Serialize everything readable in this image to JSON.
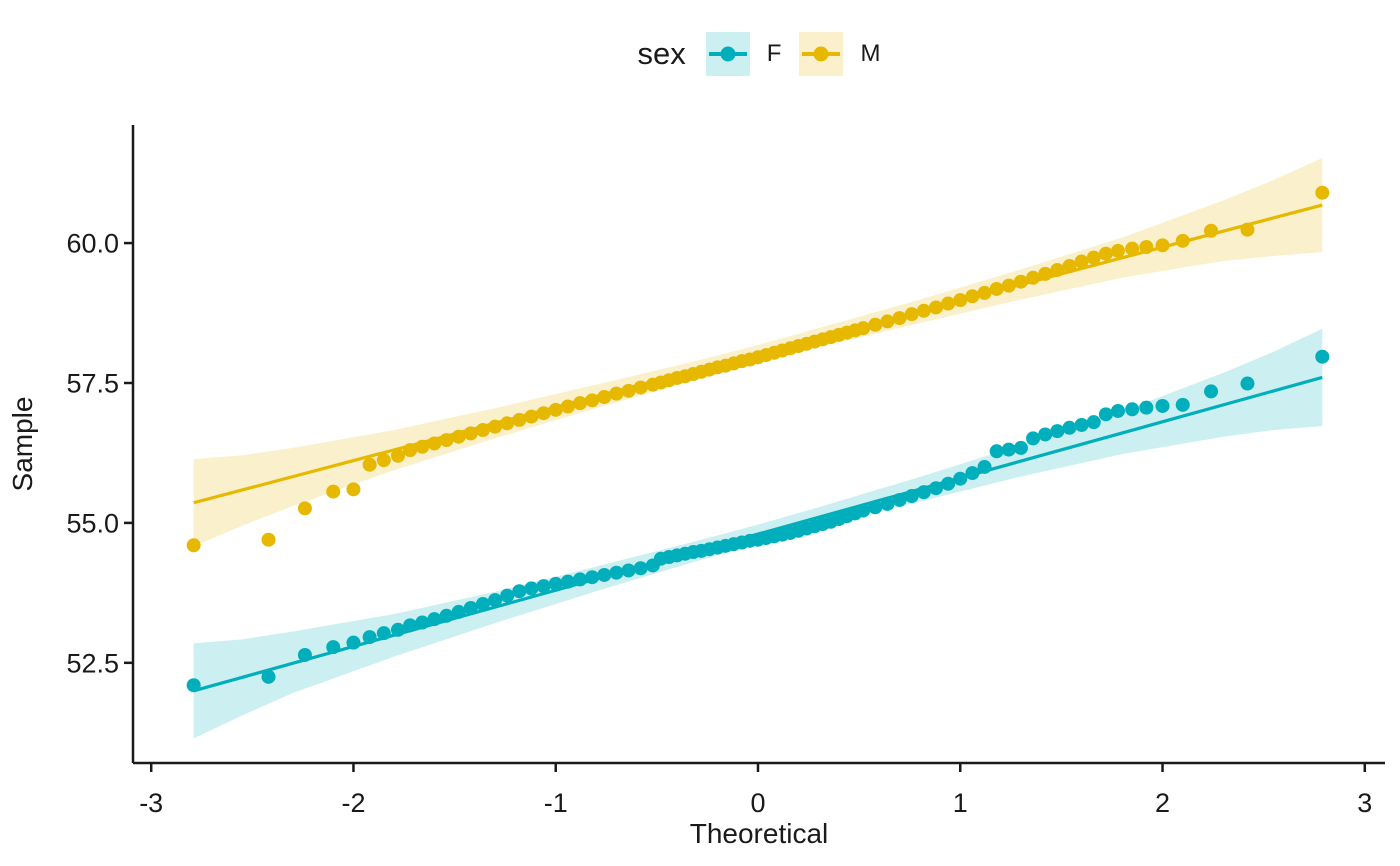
{
  "legend": {
    "title": "sex",
    "items": [
      {
        "label": "F",
        "color": "#00AFBB",
        "band_fill": "#CCEFF1"
      },
      {
        "label": "M",
        "color": "#E7B800",
        "band_fill": "#FAF1CC"
      }
    ]
  },
  "chart_data": {
    "type": "scatter",
    "subtype": "qq-plot-with-confidence-band",
    "title": "",
    "xlabel": "Theoretical",
    "ylabel": "Sample",
    "xlim": [
      -3.09,
      3.1
    ],
    "ylim": [
      50.71,
      62.11
    ],
    "x_ticks": [
      -3,
      -2,
      -1,
      0,
      1,
      2,
      3
    ],
    "x_tick_labels": [
      "-3",
      "-2",
      "-1",
      "0",
      "1",
      "2",
      "3"
    ],
    "y_ticks": [
      52.5,
      55.0,
      57.5,
      60.0
    ],
    "y_tick_labels": [
      "52.5",
      "55.0",
      "57.5",
      "60.0"
    ],
    "grid": "off",
    "legend_position": "top-center",
    "series": [
      {
        "name": "F",
        "color": "#00AFBB",
        "band_fill": "#CCEFF1",
        "line": {
          "x": [
            -2.79,
            2.79
          ],
          "y": [
            52.0,
            57.6
          ]
        },
        "band": {
          "x": [
            -2.79,
            -2.55,
            -2.3,
            -1.8,
            -1.3,
            -0.8,
            -0.3,
            0.0,
            0.3,
            0.8,
            1.3,
            1.8,
            2.3,
            2.55,
            2.79
          ],
          "lo": [
            51.15,
            51.56,
            51.96,
            52.61,
            53.21,
            53.78,
            54.32,
            54.63,
            54.92,
            55.38,
            55.83,
            56.23,
            56.54,
            56.66,
            56.73
          ],
          "hi": [
            52.85,
            52.92,
            53.06,
            53.37,
            53.77,
            54.22,
            54.68,
            54.97,
            55.28,
            55.82,
            56.39,
            56.99,
            57.68,
            58.06,
            58.47
          ]
        },
        "points": {
          "x": [
            -2.79,
            -2.42,
            -2.24,
            -2.1,
            -2.0,
            -1.92,
            -1.85,
            -1.78,
            -1.72,
            -1.66,
            -1.6,
            -1.54,
            -1.48,
            -1.42,
            -1.36,
            -1.3,
            -1.24,
            -1.18,
            -1.12,
            -1.06,
            -1.0,
            -0.94,
            -0.88,
            -0.82,
            -0.76,
            -0.7,
            -0.64,
            -0.58,
            -0.52,
            -0.48,
            -0.44,
            -0.4,
            -0.36,
            -0.32,
            -0.28,
            -0.24,
            -0.2,
            -0.16,
            -0.12,
            -0.08,
            -0.04,
            0.0,
            0.04,
            0.08,
            0.12,
            0.16,
            0.2,
            0.24,
            0.28,
            0.32,
            0.36,
            0.4,
            0.44,
            0.48,
            0.52,
            0.58,
            0.64,
            0.7,
            0.76,
            0.82,
            0.88,
            0.94,
            1.0,
            1.06,
            1.12,
            1.18,
            1.24,
            1.3,
            1.36,
            1.42,
            1.48,
            1.54,
            1.6,
            1.66,
            1.72,
            1.78,
            1.85,
            1.92,
            2.0,
            2.1,
            2.24,
            2.42,
            2.79
          ],
          "y": [
            52.1,
            52.25,
            52.64,
            52.78,
            52.86,
            52.96,
            53.03,
            53.09,
            53.17,
            53.22,
            53.28,
            53.34,
            53.41,
            53.48,
            53.55,
            53.62,
            53.7,
            53.78,
            53.83,
            53.87,
            53.91,
            53.95,
            53.99,
            54.03,
            54.07,
            54.11,
            54.15,
            54.19,
            54.24,
            54.36,
            54.39,
            54.42,
            54.45,
            54.48,
            54.5,
            54.53,
            54.56,
            54.59,
            54.62,
            54.65,
            54.68,
            54.7,
            54.73,
            54.76,
            54.79,
            54.82,
            54.86,
            54.9,
            54.94,
            54.98,
            55.02,
            55.07,
            55.12,
            55.17,
            55.22,
            55.28,
            55.34,
            55.41,
            55.48,
            55.55,
            55.62,
            55.7,
            55.79,
            55.89,
            56.0,
            56.28,
            56.31,
            56.34,
            56.51,
            56.58,
            56.64,
            56.7,
            56.75,
            56.8,
            56.94,
            57.0,
            57.03,
            57.06,
            57.09,
            57.11,
            57.35,
            57.49,
            57.97
          ]
        }
      },
      {
        "name": "M",
        "color": "#E7B800",
        "band_fill": "#FAF1CC",
        "line": {
          "x": [
            -2.79,
            2.79
          ],
          "y": [
            55.36,
            60.68
          ]
        },
        "band": {
          "x": [
            -2.79,
            -2.55,
            -2.3,
            -1.8,
            -1.3,
            -0.8,
            -0.3,
            0.0,
            0.3,
            0.8,
            1.3,
            1.8,
            2.3,
            2.55,
            2.79
          ],
          "lo": [
            54.58,
            54.95,
            55.3,
            55.94,
            56.51,
            57.05,
            57.56,
            57.86,
            58.14,
            58.57,
            58.99,
            59.38,
            59.68,
            59.77,
            59.84
          ],
          "hi": [
            56.14,
            56.21,
            56.34,
            56.66,
            57.05,
            57.47,
            57.9,
            58.18,
            58.48,
            58.99,
            59.53,
            60.1,
            60.76,
            61.13,
            61.52
          ]
        },
        "points": {
          "x": [
            -2.79,
            -2.42,
            -2.24,
            -2.1,
            -2.0,
            -1.92,
            -1.85,
            -1.78,
            -1.72,
            -1.66,
            -1.6,
            -1.54,
            -1.48,
            -1.42,
            -1.36,
            -1.3,
            -1.24,
            -1.18,
            -1.12,
            -1.06,
            -1.0,
            -0.94,
            -0.88,
            -0.82,
            -0.76,
            -0.7,
            -0.64,
            -0.58,
            -0.52,
            -0.48,
            -0.44,
            -0.4,
            -0.36,
            -0.32,
            -0.28,
            -0.24,
            -0.2,
            -0.16,
            -0.12,
            -0.08,
            -0.04,
            0.0,
            0.04,
            0.08,
            0.12,
            0.16,
            0.2,
            0.24,
            0.28,
            0.32,
            0.36,
            0.4,
            0.44,
            0.48,
            0.52,
            0.58,
            0.64,
            0.7,
            0.76,
            0.82,
            0.88,
            0.94,
            1.0,
            1.06,
            1.12,
            1.18,
            1.24,
            1.3,
            1.36,
            1.42,
            1.48,
            1.54,
            1.6,
            1.66,
            1.72,
            1.78,
            1.85,
            1.92,
            2.0,
            2.1,
            2.24,
            2.42,
            2.79
          ],
          "y": [
            54.6,
            54.7,
            55.26,
            55.56,
            55.6,
            56.04,
            56.12,
            56.2,
            56.3,
            56.36,
            56.42,
            56.48,
            56.54,
            56.6,
            56.66,
            56.72,
            56.78,
            56.84,
            56.9,
            56.96,
            57.02,
            57.08,
            57.14,
            57.19,
            57.25,
            57.31,
            57.36,
            57.42,
            57.47,
            57.51,
            57.55,
            57.59,
            57.62,
            57.66,
            57.7,
            57.74,
            57.78,
            57.81,
            57.85,
            57.89,
            57.92,
            57.96,
            58.0,
            58.04,
            58.08,
            58.12,
            58.16,
            58.2,
            58.24,
            58.28,
            58.32,
            58.36,
            58.4,
            58.44,
            58.48,
            58.54,
            58.6,
            58.66,
            58.73,
            58.79,
            58.85,
            58.92,
            58.98,
            59.05,
            59.11,
            59.18,
            59.24,
            59.31,
            59.38,
            59.45,
            59.52,
            59.59,
            59.67,
            59.74,
            59.81,
            59.86,
            59.9,
            59.93,
            59.96,
            60.04,
            60.22,
            60.24,
            60.9
          ]
        }
      }
    ]
  }
}
